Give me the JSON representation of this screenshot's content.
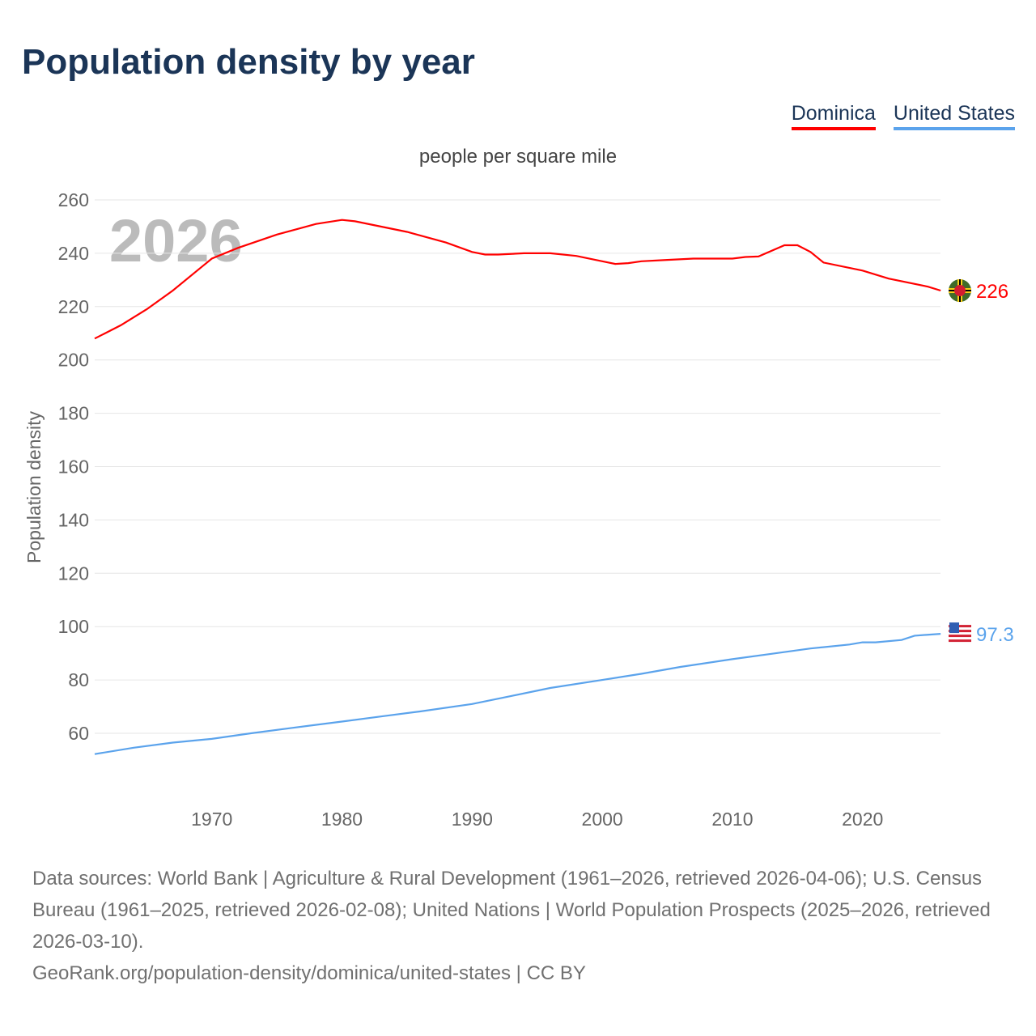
{
  "title": "Population density by year",
  "legend": [
    {
      "label": "Dominica",
      "color": "#ff0000"
    },
    {
      "label": "United States",
      "color": "#5ba3ec"
    }
  ],
  "footer": {
    "sources": "Data sources: World Bank | Agriculture & Rural Development (1961–2026, retrieved 2026-04-06); U.S. Census Bureau (1961–2025, retrieved 2026-02-08); United Nations | World Population Prospects (2025–2026, retrieved 2026-03-10).",
    "credit": "GeoRank.org/population-density/dominica/united-states | CC BY"
  },
  "chart_data": {
    "type": "line",
    "title": "Population density by year",
    "subtitle": "people per square mile",
    "ylabel": "Population density",
    "year_watermark": "2026",
    "xlim": [
      1961,
      2026
    ],
    "ylim": [
      60,
      260
    ],
    "xticks": [
      1970,
      1980,
      1990,
      2000,
      2010,
      2020
    ],
    "yticks": [
      60,
      80,
      100,
      120,
      140,
      160,
      180,
      200,
      220,
      240,
      260
    ],
    "grid": true,
    "legend_position": "top-right",
    "series": [
      {
        "name": "Dominica",
        "color": "#ff0000",
        "end_label": "226",
        "flag": "dominica-flag",
        "x": [
          1961,
          1963,
          1965,
          1967,
          1969,
          1970,
          1972,
          1975,
          1978,
          1980,
          1981,
          1985,
          1988,
          1990,
          1991,
          1992,
          1994,
          1996,
          1998,
          2000,
          2001,
          2002,
          2003,
          2005,
          2007,
          2010,
          2011,
          2012,
          2014,
          2015,
          2016,
          2017,
          2020,
          2022,
          2025,
          2026
        ],
        "y": [
          208,
          213,
          219,
          226,
          234,
          238,
          242,
          247,
          251,
          252.5,
          252,
          248,
          244,
          240.5,
          239.5,
          239.5,
          240,
          240,
          239,
          237,
          236,
          236.3,
          237,
          237.5,
          238,
          238,
          238.6,
          238.8,
          243,
          243,
          240.5,
          236.5,
          233.5,
          230.5,
          227.5,
          226
        ]
      },
      {
        "name": "United States",
        "color": "#5ba3ec",
        "end_label": "97.3",
        "flag": "us-flag",
        "x": [
          1961,
          1964,
          1967,
          1970,
          1973,
          1976,
          1980,
          1983,
          1986,
          1990,
          1993,
          1996,
          2000,
          2003,
          2006,
          2010,
          2013,
          2016,
          2019,
          2020,
          2021,
          2023,
          2024,
          2026
        ],
        "y": [
          52.2,
          54.6,
          56.5,
          57.9,
          60,
          61.9,
          64.4,
          66.3,
          68.2,
          71,
          74,
          77,
          80,
          82.3,
          84.9,
          87.8,
          89.8,
          91.8,
          93.3,
          94.1,
          94.1,
          95,
          96.6,
          97.3
        ]
      }
    ]
  }
}
